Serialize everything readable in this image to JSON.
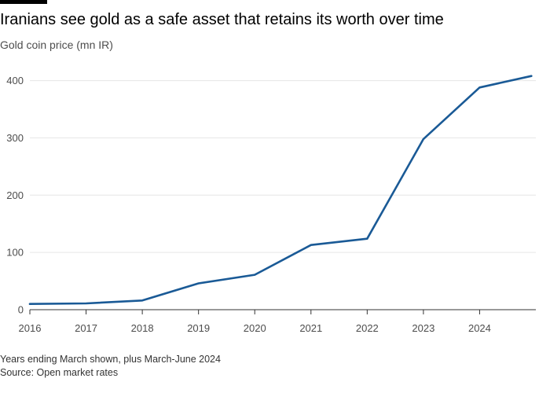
{
  "chart_data": {
    "type": "line",
    "title": "Iranians see gold as a safe asset that retains its worth over time",
    "subtitle": "Gold coin price (mn IR)",
    "xlabel": "",
    "ylabel": "",
    "x": [
      2016,
      2017,
      2018,
      2019,
      2020,
      2021,
      2022,
      2023,
      2024,
      2024.92
    ],
    "series": [
      {
        "values": [
          10,
          11,
          16,
          46,
          61,
          113,
          124,
          298,
          388,
          408
        ],
        "color": "#1a5a96"
      }
    ],
    "x_ticks": [
      "2016",
      "2017",
      "2018",
      "2019",
      "2020",
      "2021",
      "2022",
      "2023",
      "2024"
    ],
    "y_ticks": [
      0,
      100,
      200,
      300,
      400
    ],
    "ylim": [
      0,
      420
    ],
    "xlim": [
      2016,
      2025
    ],
    "grid": true,
    "legend": "none",
    "note": "Years ending March shown, plus March-June 2024",
    "source": "Source: Open market rates"
  }
}
